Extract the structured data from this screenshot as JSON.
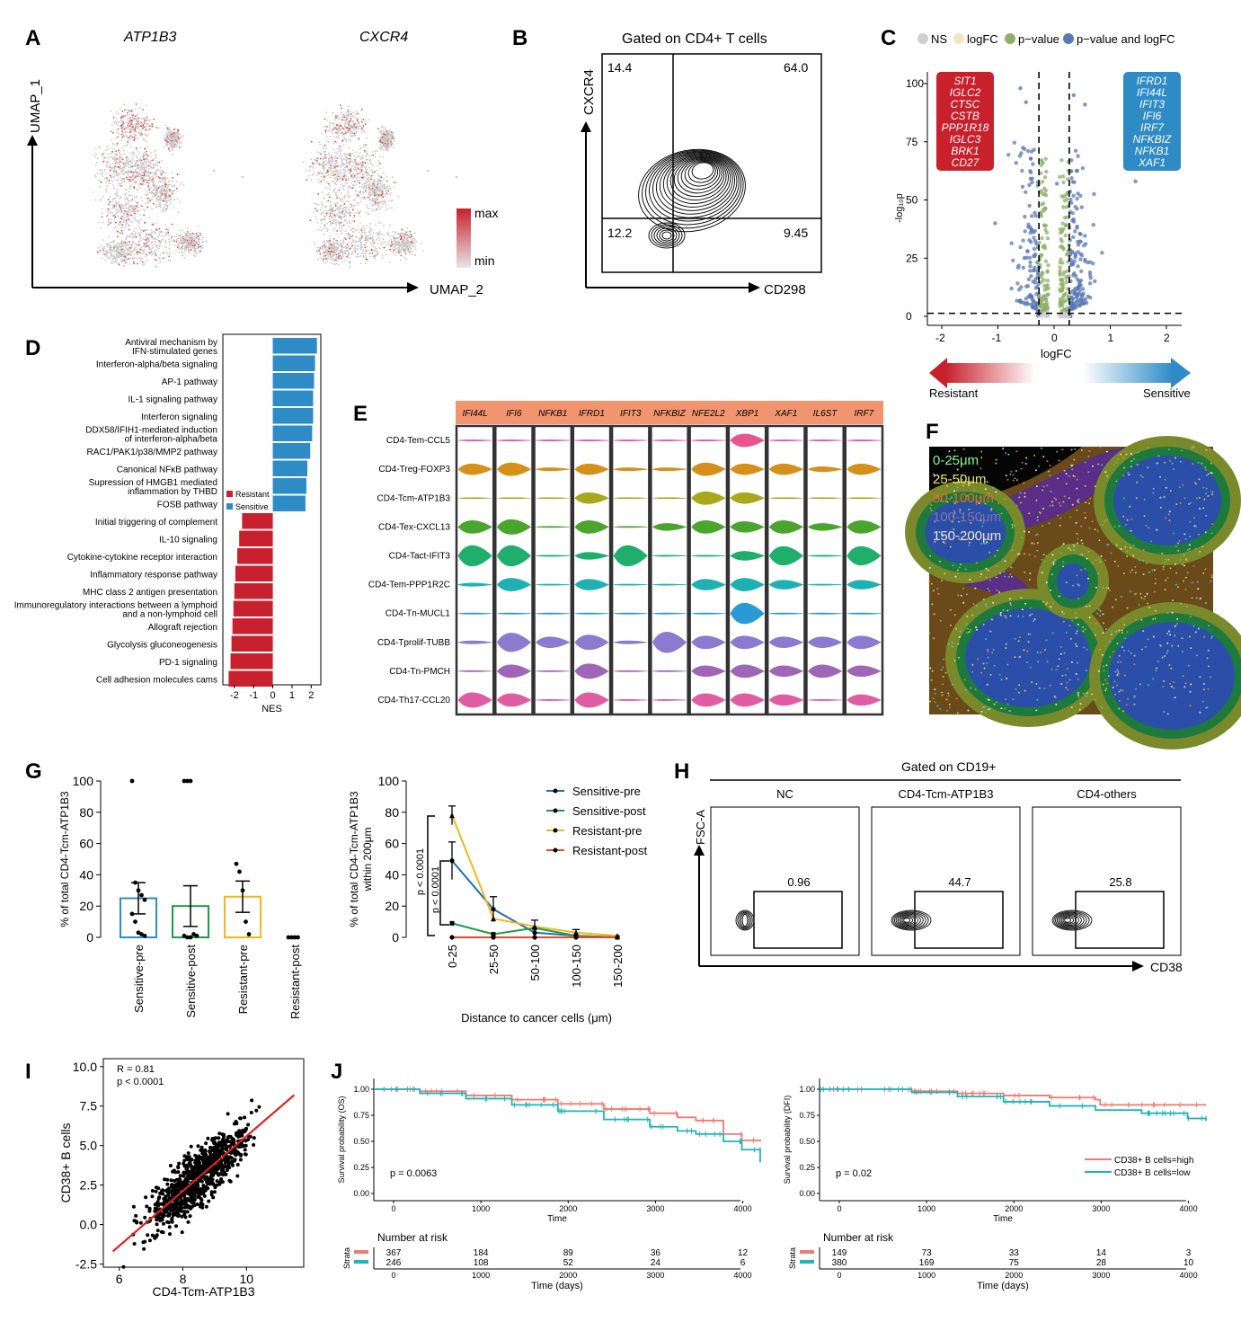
{
  "panels": {
    "A": {
      "letter": "A",
      "gene1": "ATP1B3",
      "gene2": "CXCR4",
      "xlabel": "UMAP_2",
      "ylabel": "UMAP_1",
      "legend_max": "max",
      "legend_min": "min"
    },
    "B": {
      "letter": "B",
      "title": "Gated on CD4+ T cells",
      "xlabel": "CD298",
      "ylabel": "CXCR4",
      "q_ul": "14.4",
      "q_ur": "64.0",
      "q_ll": "12.2",
      "q_lr": "9.45"
    },
    "C": {
      "letter": "C",
      "legend": [
        "NS",
        "logFC",
        "p−value",
        "p−value and logFC"
      ],
      "xlabel": "logFC",
      "ylabel": "-log₁₀p",
      "left_genes": [
        "SIT1",
        "IGLC2",
        "CTSC",
        "CSTB",
        "PPP1R18",
        "IGLC3",
        "BRK1",
        "CD27"
      ],
      "right_genes": [
        "IFRD1",
        "IFI44L",
        "IFIT3",
        "IFI6",
        "IRF7",
        "NFKBIZ",
        "NFKB1",
        "XAF1"
      ],
      "resistant": "Resistant",
      "sensitive": "Sensitive"
    },
    "D": {
      "letter": "D",
      "xlabel": "NES",
      "legend_resistant": "Resistant",
      "legend_sensitive": "Sensitive"
    },
    "E": {
      "letter": "E",
      "genes": [
        "IFI44L",
        "IFI6",
        "NFKB1",
        "IFRD1",
        "IFIT3",
        "NFKBIZ",
        "NFE2L2",
        "XBP1",
        "XAF1",
        "IL6ST",
        "IRF7"
      ],
      "clusters": [
        "CD4-Tem-CCL5",
        "CD4-Treg-FOXP3",
        "CD4-Tcm-ATP1B3",
        "CD4-Tex-CXCL13",
        "CD4-Tact-IFIT3",
        "CD4-Tem-PPP1R2C",
        "CD4-Tn-MUCL1",
        "CD4-Tprolif-TUBB",
        "CD4-Tn-PMCH",
        "CD4-Th17-CCL20"
      ]
    },
    "F": {
      "letter": "F",
      "bands": [
        "0-25μm",
        "25-50μm",
        "50-100μm",
        "100-150μm",
        "150-200μm"
      ]
    },
    "G": {
      "letter": "G",
      "ylabel_left": "% of total CD4-Tcm-ATP1B3",
      "ylabel_right1": "% of total CD4-Tcm-ATP1B3",
      "ylabel_right2": "within 200μm",
      "xlabel_right": "Distance to cancer cells (μm)",
      "p1": "p < 0.0001",
      "p2": "p < 0.0001"
    },
    "H": {
      "letter": "H",
      "title": "Gated on CD19+",
      "xlabel": "CD38",
      "ylabel": "FSC-A",
      "boxes": [
        {
          "name": "NC",
          "value": "0.96"
        },
        {
          "name": "CD4-Tcm-ATP1B3",
          "value": "44.7"
        },
        {
          "name": "CD4-others",
          "value": "25.8"
        }
      ]
    },
    "I": {
      "letter": "I",
      "xlabel": "CD4-Tcm-ATP1B3",
      "ylabel": "CD38+ B cells",
      "r": "R = 0.81",
      "p": "p < 0.0001"
    },
    "J": {
      "letter": "J",
      "left": {
        "ylabel": "Survival probability (OS)",
        "xlabel": "Time",
        "p": "p = 0.0063",
        "risk_title": "Number at risk",
        "risk_high": [
          "367",
          "184",
          "89",
          "36",
          "12"
        ],
        "risk_low": [
          "246",
          "108",
          "52",
          "24",
          "6"
        ],
        "risk_xlabel": "Time (days)"
      },
      "right": {
        "ylabel": "Survival probability (DFI)",
        "xlabel": "Time",
        "p": "p = 0.02",
        "risk_title": "Number at risk",
        "risk_high": [
          "149",
          "73",
          "33",
          "14",
          "3"
        ],
        "risk_low": [
          "380",
          "169",
          "75",
          "28",
          "10"
        ],
        "risk_xlabel": "Time (days)",
        "legend_high": "CD38+ B cells=high",
        "legend_low": "CD38+ B cells=low"
      },
      "strata": "Strata"
    }
  },
  "colors": {
    "red": "#c8202c",
    "blue": "#2e8bc6",
    "teal": "#1fb5b8",
    "salmon": "#ef7a72",
    "orange_header": "#f2956f"
  },
  "chart_data": [
    {
      "id": "D",
      "type": "bar",
      "xlabel": "NES",
      "xlim": [
        -2.6,
        2.5
      ],
      "categories": [
        "Antiviral mechanism by IFN-stimulated genes",
        "Interferon-alpha/beta signaling",
        "AP-1 pathway",
        "IL-1 signaling pathway",
        "Interferon signaling",
        "DDX58/IFIH1-mediated induction of interferon-alpha/beta",
        "RAC1/PAK1/p38/MMP2 pathway",
        "Canonical NFκB pathway",
        "Supression of HMGB1 mediated inflammation by THBD",
        "FOSB pathway",
        "Initial triggering of complement",
        "IL-10 signaling",
        "Cytokine-cytokine receptor interaction",
        "Inflammatory response pathway",
        "MHC class 2 antigen presentation",
        "Immunoregulatory interactions between a lymphoid and a non-lymphoid cell",
        "Allograft rejection",
        "Glycolysis gluconeogenesis",
        "PD-1 signaling",
        "Cell adhesion molecules cams"
      ],
      "values": [
        2.3,
        2.2,
        2.15,
        2.1,
        2.1,
        2.05,
        1.95,
        1.8,
        1.75,
        1.7,
        -1.6,
        -1.75,
        -1.85,
        -1.95,
        -2.0,
        -2.05,
        -2.1,
        -2.15,
        -2.2,
        -2.3
      ],
      "ticks": [
        "-2",
        "-1",
        "0",
        "1",
        "2"
      ]
    },
    {
      "id": "G-left",
      "type": "bar",
      "categories": [
        "Sensitive-pre",
        "Sensitive-post",
        "Resistant-pre",
        "Resistant-post"
      ],
      "values": [
        25,
        20,
        26,
        0
      ],
      "errors": [
        10,
        13,
        10,
        0
      ],
      "ylim": [
        0,
        100
      ],
      "yticks": [
        "0",
        "20",
        "40",
        "60",
        "80",
        "100"
      ],
      "colors": [
        "#2e8bc6",
        "#1f9a4a",
        "#f2b71f",
        "#e34a33"
      ]
    },
    {
      "id": "G-right",
      "type": "line",
      "categories": [
        "0-25",
        "25-50",
        "50-100",
        "100-150",
        "150-200"
      ],
      "ylim": [
        0,
        100
      ],
      "yticks": [
        "0",
        "20",
        "40",
        "60",
        "80",
        "100"
      ],
      "series": [
        {
          "name": "Sensitive-pre",
          "values": [
            49,
            18,
            3,
            1,
            0
          ],
          "color": "#1f6fb5"
        },
        {
          "name": "Sensitive-post",
          "values": [
            9,
            2,
            6,
            1,
            0
          ],
          "color": "#1f9a4a"
        },
        {
          "name": "Resistant-pre",
          "values": [
            78,
            12,
            7,
            3,
            1
          ],
          "color": "#f2b71f"
        },
        {
          "name": "Resistant-post",
          "values": [
            0,
            0,
            0,
            0,
            0
          ],
          "color": "#e34a33"
        }
      ]
    },
    {
      "id": "I",
      "type": "scatter",
      "xlim": [
        5.5,
        11.8
      ],
      "ylim": [
        -2.7,
        10.5
      ],
      "xticks": [
        "6",
        "8",
        "10"
      ],
      "yticks": [
        "-2.5",
        "0.0",
        "2.5",
        "5.0",
        "7.5",
        "10.0"
      ],
      "fit": {
        "x": [
          5.8,
          11.5
        ],
        "y": [
          -1.7,
          8.2
        ]
      }
    },
    {
      "id": "J-left",
      "type": "line",
      "xlim": [
        0,
        4200
      ],
      "ylim": [
        0,
        1
      ],
      "xticks": [
        "0",
        "1000",
        "2000",
        "3000",
        "4000"
      ],
      "yticks": [
        "0.00",
        "0.25",
        "0.50",
        "0.75",
        "1.00"
      ],
      "series": [
        {
          "name": "high",
          "x": [
            0,
            500,
            1000,
            1500,
            2000,
            2500,
            3000,
            3300,
            3500,
            3800,
            4000,
            4200
          ],
          "values": [
            1.0,
            0.98,
            0.94,
            0.9,
            0.86,
            0.81,
            0.77,
            0.73,
            0.7,
            0.57,
            0.51,
            0.5
          ],
          "color": "#ef7a72"
        },
        {
          "name": "low",
          "x": [
            0,
            500,
            1000,
            1500,
            2000,
            2500,
            3000,
            3300,
            3500,
            3800,
            4000,
            4200
          ],
          "values": [
            1.0,
            0.96,
            0.91,
            0.85,
            0.79,
            0.71,
            0.64,
            0.6,
            0.57,
            0.5,
            0.42,
            0.3
          ],
          "color": "#1fb5b8"
        }
      ]
    },
    {
      "id": "J-right",
      "type": "line",
      "xlim": [
        0,
        4200
      ],
      "ylim": [
        0,
        1
      ],
      "xticks": [
        "0",
        "1000",
        "2000",
        "3000",
        "4000"
      ],
      "yticks": [
        "0.00",
        "0.25",
        "0.50",
        "0.75",
        "1.00"
      ],
      "series": [
        {
          "name": "CD38+ B cells=high",
          "x": [
            0,
            1000,
            1500,
            2000,
            2500,
            3000,
            3050,
            3500,
            4000,
            4200
          ],
          "values": [
            1.0,
            0.98,
            0.96,
            0.94,
            0.92,
            0.9,
            0.85,
            0.85,
            0.85,
            0.85
          ],
          "color": "#ef7a72"
        },
        {
          "name": "CD38+ B cells=low",
          "x": [
            0,
            1000,
            1500,
            2000,
            2500,
            3000,
            3500,
            4000,
            4200
          ],
          "values": [
            1.0,
            0.97,
            0.93,
            0.88,
            0.84,
            0.8,
            0.77,
            0.72,
            0.7
          ],
          "color": "#1fb5b8"
        }
      ]
    }
  ]
}
